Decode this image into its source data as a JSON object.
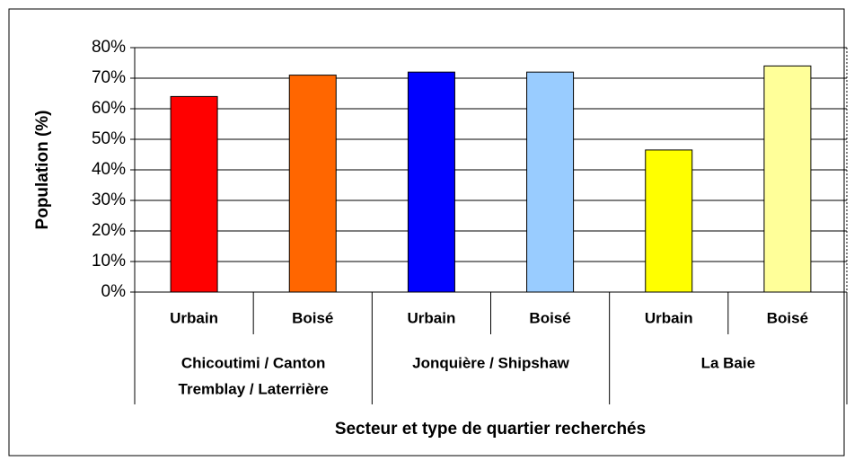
{
  "chart_data": {
    "type": "bar",
    "y_label": "Population (%)",
    "x_label": "Secteur et type de quartier recherchés",
    "categories": [
      "Urbain",
      "Boisé",
      "Urbain",
      "Boisé",
      "Urbain",
      "Boisé"
    ],
    "groups": [
      [
        "Chicoutimi / Canton",
        "Tremblay / Laterrière"
      ],
      [
        "Jonquière / Shipshaw"
      ],
      [
        "La Baie"
      ]
    ],
    "values": [
      64,
      71,
      72,
      72,
      46.5,
      74
    ],
    "colors": [
      "#ff0000",
      "#ff6600",
      "#0000ff",
      "#99ccff",
      "#ffff00",
      "#ffff99"
    ],
    "ylim": [
      0,
      80
    ],
    "yticks": [
      {
        "value": 0,
        "label": "0%"
      },
      {
        "value": 10,
        "label": "10%"
      },
      {
        "value": 20,
        "label": "20%"
      },
      {
        "value": 30,
        "label": "30%"
      },
      {
        "value": 40,
        "label": "40%"
      },
      {
        "value": 50,
        "label": "50%"
      },
      {
        "value": 60,
        "label": "60%"
      },
      {
        "value": 70,
        "label": "70%"
      },
      {
        "value": 80,
        "label": "80%"
      }
    ],
    "grid": true
  }
}
